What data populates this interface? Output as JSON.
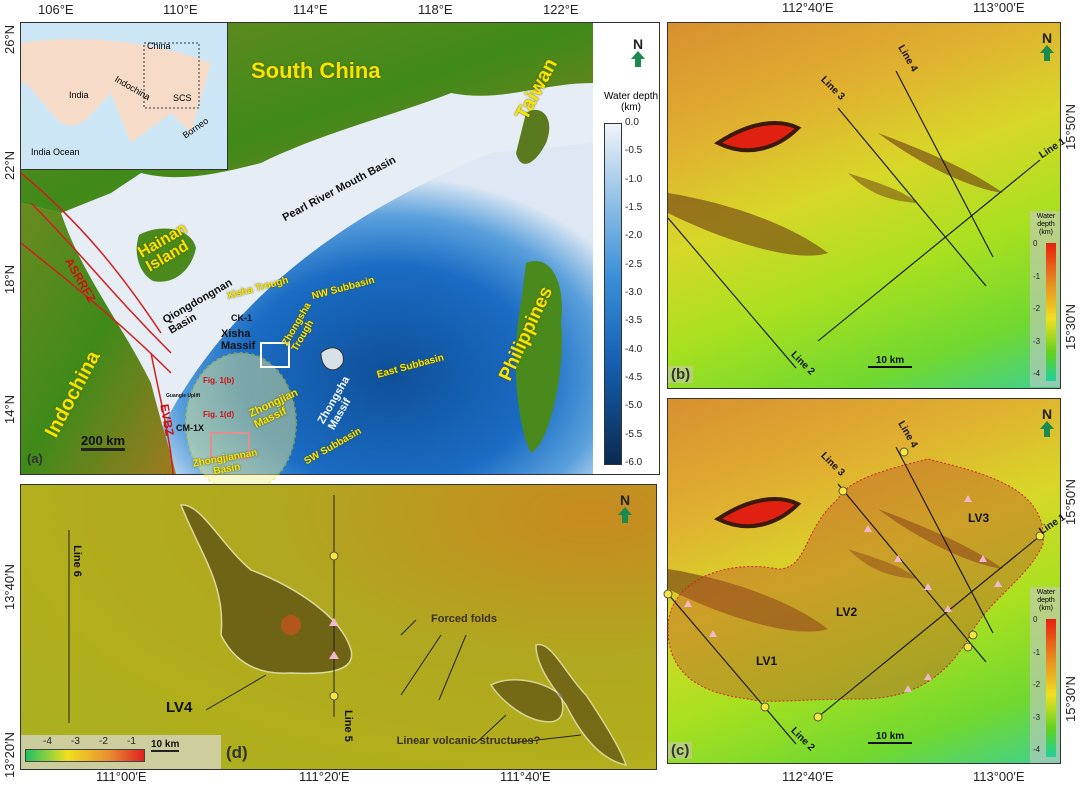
{
  "panel_a": {
    "label": "(a)",
    "lon_ticks": [
      "106°E",
      "110°E",
      "114°E",
      "118°E",
      "122°E"
    ],
    "lat_ticks": [
      "26°N",
      "22°N",
      "18°N",
      "14°N"
    ],
    "inset": {
      "labels": [
        "China",
        "India",
        "Indochina",
        "SCS",
        "Borneo",
        "India Ocean"
      ]
    },
    "places": {
      "south_china": "South China",
      "taiwan": "Taiwan",
      "hainan": "Hainan Island",
      "indochina": "Indochina",
      "philippines": "Philippines",
      "prmb": "Pearl River Mouth Basin",
      "qdn": "Qiongdongnan Basin",
      "xisha_trough": "Xisha Trough",
      "nw_subbasin": "NW Subbasin",
      "ck1": "CK-1",
      "xisha_massif": "Xisha Massif",
      "zhongsha_trough": "Zhongsha Trough",
      "zhongsha_massif": "Zhongsha Massif",
      "east_subbasin": "East Subbasin",
      "sw_subbasin": "SW Subbasin",
      "zhongjian_massif": "Zhongjian Massif",
      "zhongjiannan_basin": "Zhongjiannan Basin",
      "guangle_uplift": "Guangle Uplift",
      "cm1x": "CM-1X",
      "asrrfz": "ASRRFZ",
      "evbz": "EVBZ",
      "fig1b": "Fig. 1(b)",
      "fig1d": "Fig. 1(d)"
    },
    "scale": "200 km",
    "north": "N",
    "colorbar": {
      "title": "Water depth (km)",
      "ticks": [
        "0.0",
        "-0.5",
        "-1.0",
        "-1.5",
        "-2.0",
        "-2.5",
        "-3.0",
        "-3.5",
        "-4.0",
        "-4.5",
        "-5.0",
        "-5.5",
        "-6.0"
      ],
      "colors": [
        "#f0f4fa",
        "#9cc6e8",
        "#3a8fd8",
        "#1560b0",
        "#0a2a50"
      ]
    }
  },
  "panel_b": {
    "label": "(b)",
    "lon_ticks": [
      "112°40′E",
      "113°00′E"
    ],
    "lat_ticks": [
      "15°50′N",
      "15°30′N"
    ],
    "lines": [
      "Line 1",
      "Line 2",
      "Line 3",
      "Line 4"
    ],
    "scale": "10 km",
    "north": "N",
    "colorbar": {
      "title": "Water depth (km)",
      "ticks": [
        "0",
        "-1",
        "-2",
        "-3",
        "-4"
      ],
      "colors": [
        "#e82010",
        "#e89020",
        "#f0e020",
        "#60d020",
        "#20d0a0"
      ]
    }
  },
  "panel_c": {
    "label": "(c)",
    "lon_ticks": [
      "112°40′E",
      "113°00′E"
    ],
    "lat_ticks": [
      "15°50′N",
      "15°30′N"
    ],
    "lines": [
      "Line 1",
      "Line 2",
      "Line 3",
      "Line 4"
    ],
    "features": [
      "LV1",
      "LV2",
      "LV3"
    ],
    "scale": "10 km",
    "north": "N",
    "colorbar": {
      "title": "Water depth (km)",
      "ticks": [
        "0",
        "-1",
        "-2",
        "-3",
        "-4"
      ]
    }
  },
  "panel_d": {
    "label": "(d)",
    "lon_ticks": [
      "111°00′E",
      "111°20′E",
      "111°40′E"
    ],
    "lat_ticks": [
      "13°40′N",
      "13°20′N"
    ],
    "lines": [
      "Line 6",
      "Line 5"
    ],
    "features": {
      "lv4": "LV4",
      "forced_folds": "Forced folds",
      "linear": "Linear volcanic structures?"
    },
    "scale": "10 km",
    "north": "N",
    "colorbar": {
      "ticks": [
        "-4",
        "-3",
        "-2",
        "-1"
      ],
      "colors": [
        "#20c060",
        "#f0e020",
        "#e89030",
        "#e02020"
      ]
    }
  }
}
